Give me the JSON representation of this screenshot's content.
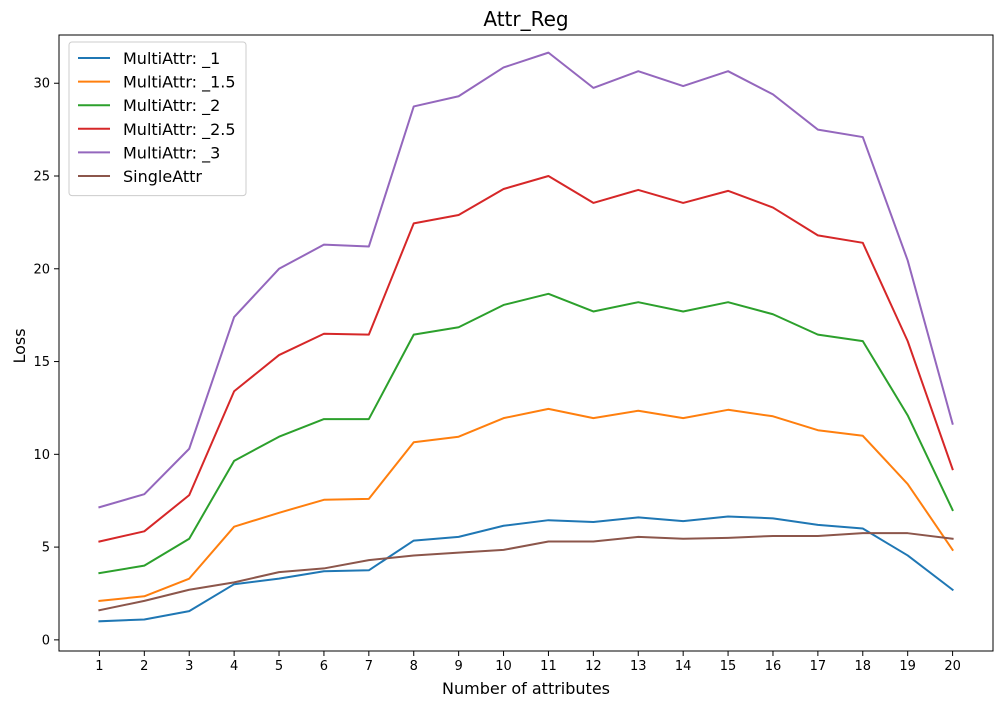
{
  "chart_data": {
    "type": "line",
    "title": "Attr_Reg",
    "xlabel": "Number of attributes",
    "ylabel": "Loss",
    "x": [
      1,
      2,
      3,
      4,
      5,
      6,
      7,
      8,
      9,
      10,
      11,
      12,
      13,
      14,
      15,
      16,
      17,
      18,
      19,
      20
    ],
    "xticks": [
      "1",
      "2",
      "3",
      "4",
      "5",
      "6",
      "7",
      "8",
      "9",
      "10",
      "11",
      "12",
      "13",
      "14",
      "15",
      "16",
      "17",
      "18",
      "19",
      "20"
    ],
    "yticks": [
      0,
      5,
      10,
      15,
      20,
      25,
      30
    ],
    "xlim": [
      0.1,
      20.9
    ],
    "ylim": [
      -0.6,
      32.6
    ],
    "grid": false,
    "legend_position": "top-left",
    "series": [
      {
        "name": "MultiAttr: _1",
        "color": "#1f77b4",
        "values": [
          1.0,
          1.1,
          1.55,
          3.0,
          3.3,
          3.7,
          3.75,
          5.35,
          5.55,
          6.15,
          6.45,
          6.35,
          6.6,
          6.4,
          6.65,
          6.55,
          6.2,
          6.0,
          4.55,
          2.7
        ]
      },
      {
        "name": "MultiAttr: _1.5",
        "color": "#ff7f0e",
        "values": [
          2.1,
          2.35,
          3.3,
          6.1,
          6.85,
          7.55,
          7.6,
          10.65,
          10.95,
          11.95,
          12.45,
          11.95,
          12.35,
          11.95,
          12.4,
          12.05,
          11.3,
          11.0,
          8.4,
          4.85
        ]
      },
      {
        "name": "MultiAttr: _2",
        "color": "#2ca02c",
        "values": [
          3.6,
          4.0,
          5.45,
          9.65,
          10.95,
          11.9,
          11.9,
          16.45,
          16.85,
          18.05,
          18.65,
          17.7,
          18.2,
          17.7,
          18.2,
          17.55,
          16.45,
          16.1,
          12.1,
          7.0
        ]
      },
      {
        "name": "MultiAttr: _2.5",
        "color": "#d62728",
        "values": [
          5.3,
          5.85,
          7.8,
          13.4,
          15.35,
          16.5,
          16.45,
          22.45,
          22.9,
          24.3,
          25.0,
          23.55,
          24.25,
          23.55,
          24.2,
          23.3,
          21.8,
          21.4,
          16.1,
          9.2
        ]
      },
      {
        "name": "MultiAttr: _3",
        "color": "#9467bd",
        "values": [
          7.15,
          7.85,
          10.3,
          17.4,
          20.0,
          21.3,
          21.2,
          28.75,
          29.3,
          30.85,
          31.65,
          29.75,
          30.65,
          29.85,
          30.65,
          29.4,
          27.5,
          27.1,
          20.45,
          11.65
        ]
      },
      {
        "name": "SingleAttr",
        "color": "#8c564b",
        "values": [
          1.6,
          2.1,
          2.7,
          3.1,
          3.65,
          3.85,
          4.3,
          4.55,
          4.7,
          4.85,
          5.3,
          5.3,
          5.55,
          5.45,
          5.5,
          5.6,
          5.6,
          5.75,
          5.75,
          5.45
        ]
      }
    ]
  }
}
